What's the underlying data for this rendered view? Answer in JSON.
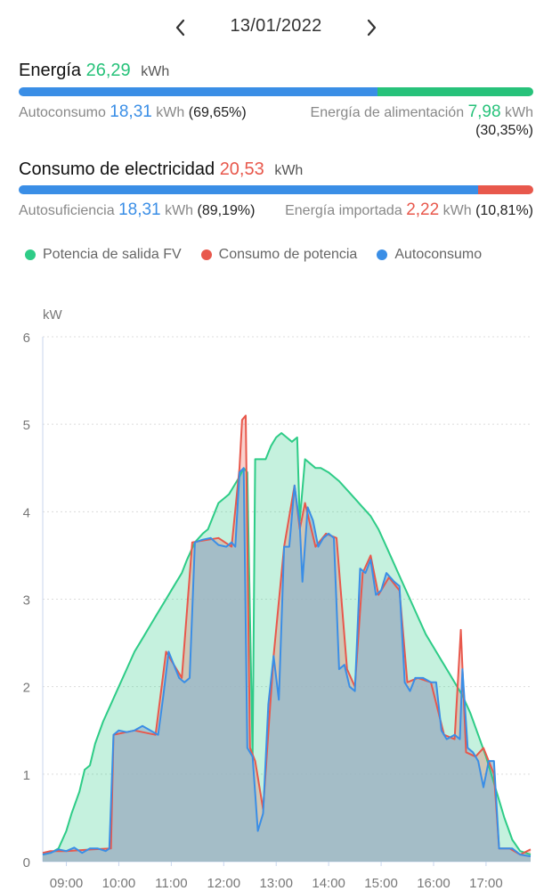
{
  "header": {
    "date": "13/01/2022"
  },
  "energy": {
    "label": "Energía",
    "value": "26,29",
    "unit": "kWh",
    "self_label": "Autoconsumo",
    "self_value": "18,31",
    "self_unit": "kWh",
    "self_pct": "(69,65%)",
    "feed_label": "Energía de alimentación",
    "feed_value": "7,98",
    "feed_unit": "kWh",
    "feed_pct": "(30,35%)",
    "bar": {
      "blue_fraction": 0.6965,
      "green_fraction": 0.3035
    }
  },
  "consumption": {
    "label": "Consumo de electricidad",
    "value": "20,53",
    "unit": "kWh",
    "suff_label": "Autosuficiencia",
    "suff_value": "18,31",
    "suff_unit": "kWh",
    "suff_pct": "(89,19%)",
    "imp_label": "Energía importada",
    "imp_value": "2,22",
    "imp_unit": "kWh",
    "imp_pct": "(10,81%)",
    "bar": {
      "blue_fraction": 0.8919,
      "red_fraction": 0.1081
    }
  },
  "legend": [
    {
      "label": "Potencia de salida FV",
      "color": "#2ecc87"
    },
    {
      "label": "Consumo de potencia",
      "color": "#e8584c"
    },
    {
      "label": "Autoconsumo",
      "color": "#3a8ee6"
    }
  ],
  "colors": {
    "green": "#27c27a",
    "blue": "#3a8ee6",
    "red": "#e8584c"
  },
  "chart_data": {
    "type": "area",
    "ylabel": "kW",
    "ylim": [
      0,
      6
    ],
    "yticks": [
      "0",
      "1",
      "2",
      "3",
      "4",
      "5",
      "6"
    ],
    "xticks": [
      {
        "label": "09:00",
        "t": 9.0
      },
      {
        "label": "10:00",
        "t": 10.0
      },
      {
        "label": "11:00",
        "t": 11.0
      },
      {
        "label": "12:00",
        "t": 12.0
      },
      {
        "label": "13:00",
        "t": 13.0
      },
      {
        "label": "14:00",
        "t": 14.0
      },
      {
        "label": "15:00",
        "t": 15.0
      },
      {
        "label": "16:00",
        "t": 16.0
      },
      {
        "label": "17:00",
        "t": 17.0
      }
    ],
    "xlim": [
      8.55,
      17.85
    ],
    "grid": true,
    "series": [
      {
        "name": "Potencia de salida FV",
        "color": "#2ecc87",
        "points": [
          [
            8.55,
            0.08
          ],
          [
            8.7,
            0.1
          ],
          [
            8.85,
            0.15
          ],
          [
            9.0,
            0.35
          ],
          [
            9.1,
            0.55
          ],
          [
            9.25,
            0.8
          ],
          [
            9.35,
            1.05
          ],
          [
            9.45,
            1.1
          ],
          [
            9.55,
            1.35
          ],
          [
            9.7,
            1.6
          ],
          [
            9.85,
            1.8
          ],
          [
            10.0,
            2.0
          ],
          [
            10.15,
            2.2
          ],
          [
            10.3,
            2.4
          ],
          [
            10.45,
            2.55
          ],
          [
            10.6,
            2.7
          ],
          [
            10.75,
            2.85
          ],
          [
            10.9,
            3.0
          ],
          [
            11.05,
            3.15
          ],
          [
            11.2,
            3.3
          ],
          [
            11.3,
            3.45
          ],
          [
            11.45,
            3.65
          ],
          [
            11.6,
            3.75
          ],
          [
            11.7,
            3.8
          ],
          [
            11.8,
            3.95
          ],
          [
            11.9,
            4.1
          ],
          [
            12.0,
            4.15
          ],
          [
            12.1,
            4.2
          ],
          [
            12.2,
            4.3
          ],
          [
            12.3,
            4.4
          ],
          [
            12.38,
            4.5
          ],
          [
            12.45,
            4.45
          ],
          [
            12.55,
            1.2
          ],
          [
            12.6,
            4.6
          ],
          [
            12.7,
            4.6
          ],
          [
            12.8,
            4.6
          ],
          [
            12.9,
            4.75
          ],
          [
            13.0,
            4.85
          ],
          [
            13.1,
            4.9
          ],
          [
            13.2,
            4.85
          ],
          [
            13.3,
            4.8
          ],
          [
            13.4,
            4.85
          ],
          [
            13.45,
            3.9
          ],
          [
            13.55,
            4.6
          ],
          [
            13.65,
            4.55
          ],
          [
            13.75,
            4.5
          ],
          [
            13.85,
            4.5
          ],
          [
            14.0,
            4.45
          ],
          [
            14.1,
            4.4
          ],
          [
            14.2,
            4.35
          ],
          [
            14.35,
            4.25
          ],
          [
            14.5,
            4.15
          ],
          [
            14.65,
            4.05
          ],
          [
            14.8,
            3.95
          ],
          [
            14.95,
            3.8
          ],
          [
            15.1,
            3.6
          ],
          [
            15.25,
            3.4
          ],
          [
            15.4,
            3.2
          ],
          [
            15.55,
            3.0
          ],
          [
            15.7,
            2.8
          ],
          [
            15.85,
            2.6
          ],
          [
            16.0,
            2.45
          ],
          [
            16.15,
            2.3
          ],
          [
            16.3,
            2.15
          ],
          [
            16.45,
            2.0
          ],
          [
            16.55,
            1.9
          ],
          [
            16.7,
            1.7
          ],
          [
            16.85,
            1.45
          ],
          [
            17.0,
            1.2
          ],
          [
            17.1,
            1.0
          ],
          [
            17.2,
            0.8
          ],
          [
            17.35,
            0.5
          ],
          [
            17.5,
            0.25
          ],
          [
            17.65,
            0.12
          ],
          [
            17.85,
            0.08
          ]
        ]
      },
      {
        "name": "Consumo de potencia",
        "color": "#e8584c",
        "points": [
          [
            8.55,
            0.1
          ],
          [
            8.7,
            0.12
          ],
          [
            9.0,
            0.12
          ],
          [
            9.5,
            0.14
          ],
          [
            9.85,
            0.15
          ],
          [
            9.9,
            1.45
          ],
          [
            10.3,
            1.5
          ],
          [
            10.7,
            1.45
          ],
          [
            10.9,
            2.4
          ],
          [
            11.2,
            2.1
          ],
          [
            11.4,
            3.65
          ],
          [
            11.9,
            3.7
          ],
          [
            12.15,
            3.6
          ],
          [
            12.3,
            4.5
          ],
          [
            12.35,
            5.05
          ],
          [
            12.42,
            5.1
          ],
          [
            12.5,
            1.3
          ],
          [
            12.6,
            1.15
          ],
          [
            12.75,
            0.6
          ],
          [
            12.95,
            2.35
          ],
          [
            13.15,
            3.6
          ],
          [
            13.35,
            4.3
          ],
          [
            13.45,
            3.8
          ],
          [
            13.55,
            4.1
          ],
          [
            13.75,
            3.6
          ],
          [
            13.95,
            3.75
          ],
          [
            14.15,
            3.7
          ],
          [
            14.35,
            2.2
          ],
          [
            14.5,
            2.0
          ],
          [
            14.65,
            3.3
          ],
          [
            14.8,
            3.5
          ],
          [
            14.95,
            3.05
          ],
          [
            15.15,
            3.25
          ],
          [
            15.35,
            3.1
          ],
          [
            15.5,
            2.05
          ],
          [
            15.7,
            2.1
          ],
          [
            15.95,
            2.05
          ],
          [
            16.2,
            1.45
          ],
          [
            16.4,
            1.4
          ],
          [
            16.52,
            2.65
          ],
          [
            16.62,
            1.25
          ],
          [
            16.8,
            1.2
          ],
          [
            16.95,
            1.3
          ],
          [
            17.05,
            1.15
          ],
          [
            17.15,
            1.0
          ],
          [
            17.25,
            0.15
          ],
          [
            17.45,
            0.15
          ],
          [
            17.65,
            0.08
          ],
          [
            17.85,
            0.14
          ]
        ]
      },
      {
        "name": "Autoconsumo",
        "color": "#3a8ee6",
        "points": [
          [
            8.55,
            0.08
          ],
          [
            8.7,
            0.1
          ],
          [
            8.85,
            0.14
          ],
          [
            9.0,
            0.12
          ],
          [
            9.15,
            0.16
          ],
          [
            9.3,
            0.1
          ],
          [
            9.45,
            0.15
          ],
          [
            9.6,
            0.15
          ],
          [
            9.75,
            0.12
          ],
          [
            9.82,
            0.15
          ],
          [
            9.9,
            1.45
          ],
          [
            10.0,
            1.5
          ],
          [
            10.15,
            1.48
          ],
          [
            10.3,
            1.5
          ],
          [
            10.45,
            1.55
          ],
          [
            10.6,
            1.5
          ],
          [
            10.75,
            1.45
          ],
          [
            10.85,
            1.9
          ],
          [
            10.95,
            2.4
          ],
          [
            11.05,
            2.25
          ],
          [
            11.15,
            2.1
          ],
          [
            11.25,
            2.05
          ],
          [
            11.35,
            2.1
          ],
          [
            11.45,
            3.65
          ],
          [
            11.6,
            3.68
          ],
          [
            11.75,
            3.7
          ],
          [
            11.9,
            3.62
          ],
          [
            12.05,
            3.6
          ],
          [
            12.15,
            3.65
          ],
          [
            12.22,
            3.6
          ],
          [
            12.3,
            4.45
          ],
          [
            12.38,
            4.5
          ],
          [
            12.45,
            1.3
          ],
          [
            12.55,
            1.2
          ],
          [
            12.65,
            0.35
          ],
          [
            12.75,
            0.55
          ],
          [
            12.85,
            1.8
          ],
          [
            12.95,
            2.35
          ],
          [
            13.05,
            1.85
          ],
          [
            13.15,
            3.6
          ],
          [
            13.25,
            3.6
          ],
          [
            13.35,
            4.3
          ],
          [
            13.45,
            3.85
          ],
          [
            13.5,
            3.2
          ],
          [
            13.6,
            4.05
          ],
          [
            13.7,
            3.9
          ],
          [
            13.8,
            3.6
          ],
          [
            13.9,
            3.7
          ],
          [
            14.0,
            3.75
          ],
          [
            14.1,
            3.7
          ],
          [
            14.2,
            2.2
          ],
          [
            14.3,
            2.25
          ],
          [
            14.4,
            2.0
          ],
          [
            14.5,
            1.95
          ],
          [
            14.6,
            3.35
          ],
          [
            14.7,
            3.3
          ],
          [
            14.8,
            3.45
          ],
          [
            14.9,
            3.05
          ],
          [
            15.0,
            3.1
          ],
          [
            15.1,
            3.3
          ],
          [
            15.25,
            3.2
          ],
          [
            15.35,
            3.15
          ],
          [
            15.45,
            2.05
          ],
          [
            15.55,
            1.95
          ],
          [
            15.65,
            2.1
          ],
          [
            15.8,
            2.1
          ],
          [
            15.95,
            2.05
          ],
          [
            16.05,
            2.05
          ],
          [
            16.15,
            1.5
          ],
          [
            16.25,
            1.4
          ],
          [
            16.4,
            1.45
          ],
          [
            16.5,
            1.4
          ],
          [
            16.55,
            2.2
          ],
          [
            16.65,
            1.3
          ],
          [
            16.75,
            1.25
          ],
          [
            16.85,
            1.15
          ],
          [
            16.95,
            0.85
          ],
          [
            17.05,
            1.15
          ],
          [
            17.15,
            1.15
          ],
          [
            17.25,
            0.15
          ],
          [
            17.35,
            0.15
          ],
          [
            17.5,
            0.15
          ],
          [
            17.65,
            0.08
          ],
          [
            17.85,
            0.06
          ]
        ]
      }
    ]
  }
}
